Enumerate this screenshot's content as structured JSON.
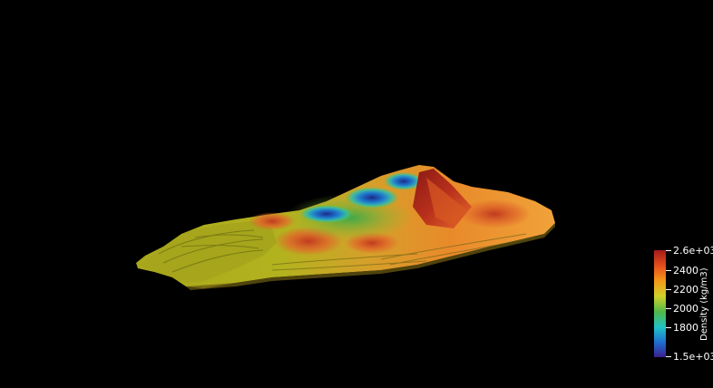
{
  "viewer": {
    "background": "#000000"
  },
  "colorbar": {
    "title": "Density (kg/m3)",
    "min_label": "1.5e+03",
    "max_label": "2.6e+03",
    "ticks": [
      "2400",
      "2200",
      "2000",
      "1800"
    ],
    "colors": [
      "#3b1f8f",
      "#1f6fd1",
      "#21c2c8",
      "#4fb84a",
      "#cfd12a",
      "#f39a1a",
      "#e5501c",
      "#a51b1b"
    ]
  }
}
